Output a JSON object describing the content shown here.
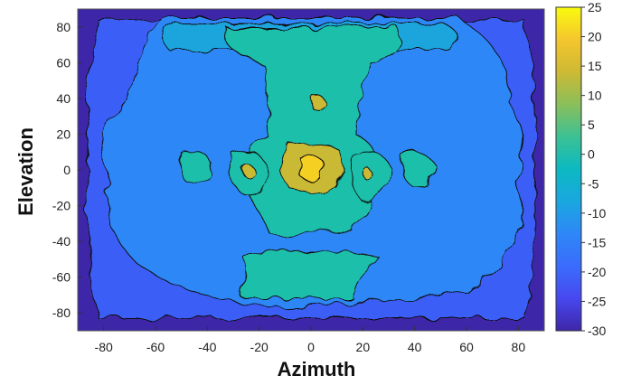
{
  "chart_data": {
    "type": "heatmap",
    "title": "",
    "xlabel": "Azimuth",
    "ylabel": "Elevation",
    "xlim": [
      -90,
      90
    ],
    "ylim": [
      -90,
      90
    ],
    "x_ticks": [
      -80,
      -60,
      -40,
      -20,
      0,
      20,
      40,
      60,
      80
    ],
    "y_ticks": [
      80,
      60,
      40,
      20,
      0,
      -20,
      -40,
      -60,
      -80
    ],
    "colorbar": {
      "range": [
        -30,
        25
      ],
      "ticks": [
        25,
        20,
        15,
        10,
        5,
        0,
        -5,
        -10,
        -15,
        -20,
        -25,
        -30
      ],
      "colormap": "parula",
      "placement": "right"
    },
    "contour_levels": [
      -30,
      -25,
      -20,
      -15,
      -10,
      -5,
      0,
      5,
      10,
      15,
      20,
      25
    ],
    "features": [
      {
        "azimuth": 0,
        "elevation": 0,
        "value": 22
      },
      {
        "azimuth": 3,
        "elevation": 38,
        "value": 10
      },
      {
        "azimuth": -24,
        "elevation": 0,
        "value": 10
      },
      {
        "azimuth": 22,
        "elevation": -4,
        "value": 10
      },
      {
        "azimuth": 0,
        "elevation": 55,
        "value": 0
      },
      {
        "azimuth": 0,
        "elevation": -60,
        "value": 0
      },
      {
        "azimuth": -90,
        "elevation": 0,
        "value": -28
      },
      {
        "azimuth": 90,
        "elevation": 0,
        "value": -28
      }
    ],
    "grid": false,
    "legend": "none"
  },
  "colors": {
    "lowest": "#3e26a8",
    "low": "#2e87f7",
    "mid": "#1fc8a8",
    "high": "#bbbc27",
    "highest": "#f9fb0e"
  }
}
